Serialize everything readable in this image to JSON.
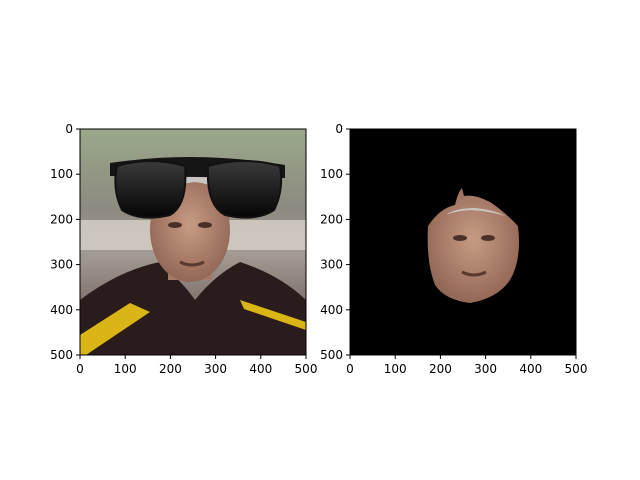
{
  "chart_data": [
    {
      "type": "image",
      "panel": "left",
      "content": "photo of a man with grey hair wearing a dark jacket with yellow stripe, with cartoon sunglasses overlaid on the top",
      "x_ticks": [
        0,
        100,
        200,
        300,
        400,
        500
      ],
      "y_ticks": [
        0,
        100,
        200,
        300,
        400,
        500
      ],
      "xlim": [
        0,
        500
      ],
      "ylim": [
        500,
        0
      ],
      "y_inverted": true,
      "overlay": {
        "name": "sunglasses",
        "x_range": [
          65,
          455
        ],
        "y_range": [
          65,
          200
        ]
      }
    },
    {
      "type": "image",
      "panel": "right",
      "content": "same face extracted as a segmentation mask on a black background",
      "x_ticks": [
        0,
        100,
        200,
        300,
        400,
        500
      ],
      "y_ticks": [
        0,
        100,
        200,
        300,
        400,
        500
      ],
      "xlim": [
        0,
        500
      ],
      "ylim": [
        500,
        0
      ],
      "y_inverted": true,
      "mask_background": "#000000"
    }
  ],
  "colors": {
    "background": "#ffffff",
    "axis": "#000000",
    "skin": "#b98a72",
    "hair": "#c9c5c0",
    "jacket": "#2a1b1c",
    "stripe": "#d9b515",
    "lens": "#151515"
  }
}
